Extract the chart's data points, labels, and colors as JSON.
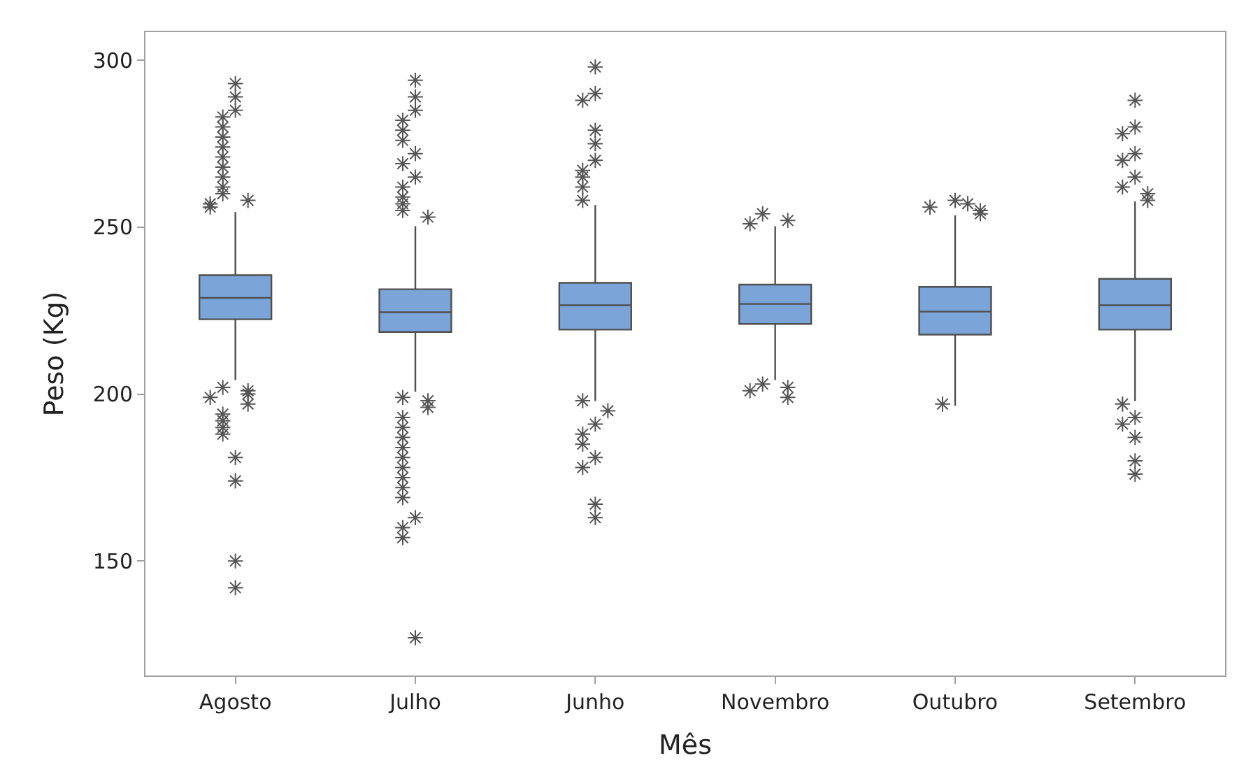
{
  "chart_data": {
    "type": "box",
    "xlabel": "Mês",
    "ylabel": "Peso (Kg)",
    "categories": [
      "Agosto",
      "Julho",
      "Junho",
      "Novembro",
      "Outubro",
      "Setembro"
    ],
    "color": "#7ba4d9",
    "marker": "star",
    "ylim": [
      115.7,
      308.4
    ],
    "yticks": [
      150,
      200,
      250,
      300
    ],
    "boxes": [
      {
        "low": 204.2,
        "q1": 222.4,
        "median": 228.8,
        "q3": 235.6,
        "high": 254.5,
        "outliers": [
          293,
          289,
          285,
          283,
          280,
          277,
          274,
          271,
          268,
          265,
          262,
          260,
          258,
          257,
          256,
          202,
          201,
          200,
          199,
          197,
          194,
          192,
          190,
          188,
          181,
          174,
          150,
          142
        ]
      },
      {
        "low": 200.7,
        "q1": 218.6,
        "median": 224.5,
        "q3": 231.4,
        "high": 250.3,
        "outliers": [
          294,
          289,
          285,
          282,
          279,
          276,
          272,
          269,
          265,
          262,
          259,
          257,
          255,
          253,
          199,
          198,
          196,
          193,
          190,
          187,
          184,
          181,
          178,
          175,
          172,
          169,
          163,
          160,
          157,
          127
        ]
      },
      {
        "low": 197.9,
        "q1": 219.3,
        "median": 226.6,
        "q3": 233.3,
        "high": 256.6,
        "outliers": [
          298,
          290,
          288,
          279,
          275,
          270,
          267,
          265,
          262,
          258,
          198,
          195,
          191,
          188,
          185,
          181,
          178,
          167,
          163
        ]
      },
      {
        "low": 204.2,
        "q1": 221.0,
        "median": 227.0,
        "q3": 232.8,
        "high": 250.3,
        "outliers": [
          254,
          252,
          251,
          203,
          202,
          201,
          199
        ]
      },
      {
        "low": 196.5,
        "q1": 217.8,
        "median": 224.7,
        "q3": 232.1,
        "high": 253.5,
        "outliers": [
          258,
          257,
          256,
          255,
          254,
          197
        ]
      },
      {
        "low": 197.9,
        "q1": 219.3,
        "median": 226.6,
        "q3": 234.5,
        "high": 257.7,
        "outliers": [
          288,
          280,
          278,
          272,
          270,
          265,
          262,
          260,
          258,
          197,
          193,
          191,
          187,
          180,
          176
        ]
      }
    ]
  }
}
